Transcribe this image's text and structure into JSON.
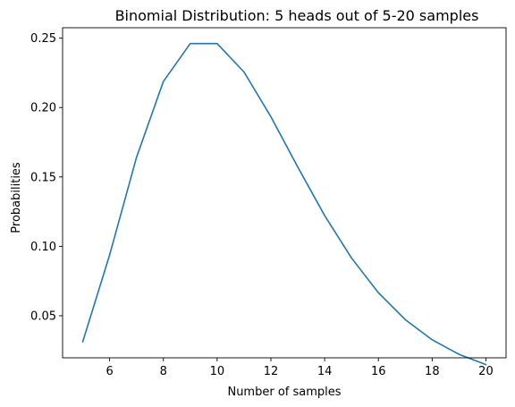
{
  "chart_data": {
    "type": "line",
    "title": "Binomial Distribution: 5 heads out of 5-20 samples",
    "xlabel": "Number of samples",
    "ylabel": "Probabilities",
    "xlim": [
      4.25,
      20.75
    ],
    "ylim": [
      0.0197,
      0.2575
    ],
    "xticks": [
      6,
      8,
      10,
      12,
      14,
      16,
      18,
      20
    ],
    "yticks": [
      0.05,
      0.1,
      0.15,
      0.2,
      0.25
    ],
    "ytick_labels": [
      "0.05",
      "0.10",
      "0.15",
      "0.20",
      "0.25"
    ],
    "grid": false,
    "series": [
      {
        "color": "#1f77b4",
        "x": [
          5,
          6,
          7,
          8,
          9,
          10,
          11,
          12,
          13,
          14,
          15,
          16,
          17,
          18,
          19,
          20
        ],
        "y": [
          0.0313,
          0.0938,
          0.1641,
          0.2188,
          0.2461,
          0.2461,
          0.2256,
          0.1934,
          0.1571,
          0.1222,
          0.0916,
          0.0666,
          0.0472,
          0.0327,
          0.0222,
          0.0148
        ]
      }
    ]
  }
}
